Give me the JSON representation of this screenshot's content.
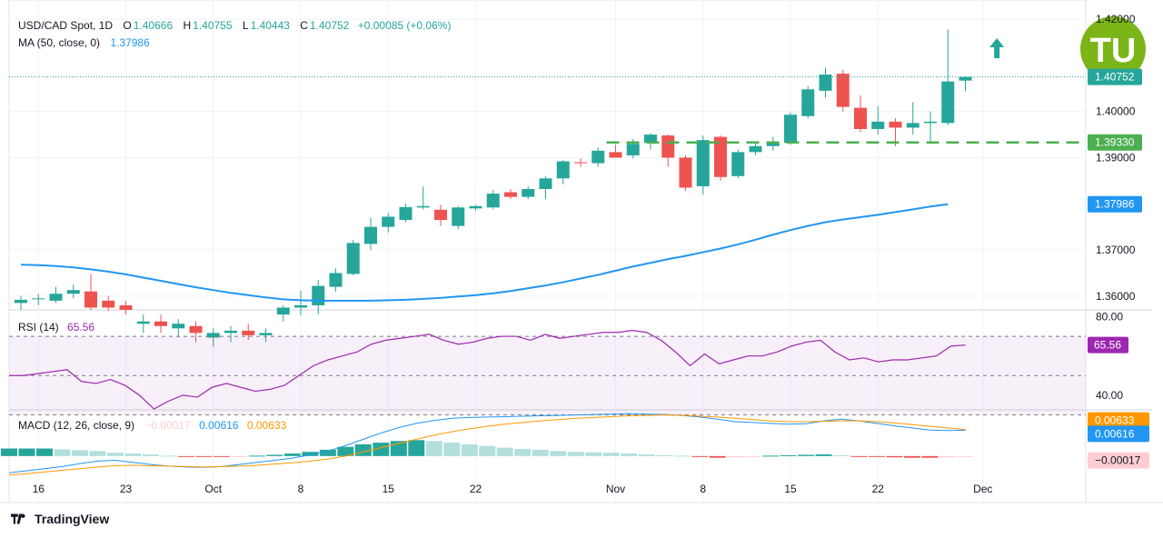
{
  "header": {
    "symbol": "USD/CAD Spot, 1D",
    "o_label": "O",
    "o_value": "1.40666",
    "h_label": "H",
    "h_value": "1.40755",
    "l_label": "L",
    "l_value": "1.40443",
    "c_label": "C",
    "c_value": "1.40752",
    "change": "+0.00085 (+0.06%)",
    "ma_label": "MA (50, close, 0)",
    "ma_value": "1.37986"
  },
  "rsi_legend": {
    "label": "RSI (14)",
    "value": "65.56"
  },
  "macd_legend": {
    "label": "MACD (12, 26, close, 9)",
    "hist": "−0.00017",
    "macd": "0.00616",
    "signal": "0.00633"
  },
  "branding": {
    "text": "TradingView",
    "watermark": "TU"
  },
  "colors": {
    "up": "#26a69a",
    "down": "#ef5350",
    "ma": "#2196f3",
    "rsi": "#9c27b0",
    "macd": "#2196f3",
    "signal": "#ff9800",
    "support": "#4caf50",
    "hist_up_strong": "#26a69a",
    "hist_up_weak": "#b2dfdb",
    "hist_down_strong": "#ef5350",
    "hist_down_weak": "#ffcdd2"
  },
  "chart_data": {
    "type": "candlestick",
    "price_axis_ticks": [
      "1.42000",
      "1.40000",
      "1.39000",
      "1.37000",
      "1.36000"
    ],
    "price_labels": {
      "last": "1.40752",
      "support": "1.39330",
      "ma": "1.37986"
    },
    "x_ticks": [
      "16",
      "23",
      "Oct",
      "8",
      "15",
      "22",
      "Nov",
      "8",
      "15",
      "22",
      "Dec"
    ],
    "support_level": 1.3933,
    "arrow": "up",
    "candles": [
      {
        "o": 1.3585,
        "h": 1.36,
        "l": 1.357,
        "c": 1.3592
      },
      {
        "o": 1.3593,
        "h": 1.3605,
        "l": 1.358,
        "c": 1.3595
      },
      {
        "o": 1.359,
        "h": 1.362,
        "l": 1.3585,
        "c": 1.3605
      },
      {
        "o": 1.3605,
        "h": 1.3625,
        "l": 1.3595,
        "c": 1.3613
      },
      {
        "o": 1.361,
        "h": 1.3648,
        "l": 1.357,
        "c": 1.3575
      },
      {
        "o": 1.359,
        "h": 1.36,
        "l": 1.3568,
        "c": 1.3575
      },
      {
        "o": 1.358,
        "h": 1.359,
        "l": 1.356,
        "c": 1.357
      },
      {
        "o": 1.354,
        "h": 1.356,
        "l": 1.352,
        "c": 1.3545
      },
      {
        "o": 1.3545,
        "h": 1.356,
        "l": 1.352,
        "c": 1.3535
      },
      {
        "o": 1.353,
        "h": 1.355,
        "l": 1.351,
        "c": 1.354
      },
      {
        "o": 1.3535,
        "h": 1.3545,
        "l": 1.35,
        "c": 1.352
      },
      {
        "o": 1.351,
        "h": 1.353,
        "l": 1.349,
        "c": 1.352
      },
      {
        "o": 1.352,
        "h": 1.3535,
        "l": 1.35,
        "c": 1.3525
      },
      {
        "o": 1.3525,
        "h": 1.354,
        "l": 1.3505,
        "c": 1.3515
      },
      {
        "o": 1.3515,
        "h": 1.353,
        "l": 1.35,
        "c": 1.352
      },
      {
        "o": 1.356,
        "h": 1.358,
        "l": 1.3545,
        "c": 1.3575
      },
      {
        "o": 1.3575,
        "h": 1.3612,
        "l": 1.3558,
        "c": 1.358
      },
      {
        "o": 1.358,
        "h": 1.3635,
        "l": 1.356,
        "c": 1.3622
      },
      {
        "o": 1.362,
        "h": 1.366,
        "l": 1.361,
        "c": 1.365
      },
      {
        "o": 1.3648,
        "h": 1.3722,
        "l": 1.3645,
        "c": 1.3715
      },
      {
        "o": 1.3713,
        "h": 1.377,
        "l": 1.37,
        "c": 1.375
      },
      {
        "o": 1.375,
        "h": 1.378,
        "l": 1.3738,
        "c": 1.3772
      },
      {
        "o": 1.3765,
        "h": 1.38,
        "l": 1.376,
        "c": 1.3793
      },
      {
        "o": 1.3792,
        "h": 1.3838,
        "l": 1.3788,
        "c": 1.3795
      },
      {
        "o": 1.3787,
        "h": 1.3798,
        "l": 1.3752,
        "c": 1.3765
      },
      {
        "o": 1.3752,
        "h": 1.3795,
        "l": 1.3745,
        "c": 1.3792
      },
      {
        "o": 1.379,
        "h": 1.3798,
        "l": 1.3785,
        "c": 1.3795
      },
      {
        "o": 1.3792,
        "h": 1.383,
        "l": 1.3788,
        "c": 1.3822
      },
      {
        "o": 1.3825,
        "h": 1.3832,
        "l": 1.381,
        "c": 1.3815
      },
      {
        "o": 1.3815,
        "h": 1.3838,
        "l": 1.381,
        "c": 1.3832
      },
      {
        "o": 1.3832,
        "h": 1.386,
        "l": 1.381,
        "c": 1.3855
      },
      {
        "o": 1.3855,
        "h": 1.3895,
        "l": 1.3842,
        "c": 1.3892
      },
      {
        "o": 1.389,
        "h": 1.3898,
        "l": 1.388,
        "c": 1.3888
      },
      {
        "o": 1.3888,
        "h": 1.3922,
        "l": 1.388,
        "c": 1.3915
      },
      {
        "o": 1.3912,
        "h": 1.3928,
        "l": 1.39,
        "c": 1.39
      },
      {
        "o": 1.3905,
        "h": 1.394,
        "l": 1.3898,
        "c": 1.393
      },
      {
        "o": 1.3932,
        "h": 1.3953,
        "l": 1.3918,
        "c": 1.395
      },
      {
        "o": 1.3948,
        "h": 1.395,
        "l": 1.388,
        "c": 1.39
      },
      {
        "o": 1.39,
        "h": 1.3905,
        "l": 1.3828,
        "c": 1.3835
      },
      {
        "o": 1.3838,
        "h": 1.3948,
        "l": 1.382,
        "c": 1.3938
      },
      {
        "o": 1.3945,
        "h": 1.3948,
        "l": 1.385,
        "c": 1.3858
      },
      {
        "o": 1.386,
        "h": 1.3918,
        "l": 1.3855,
        "c": 1.3912
      },
      {
        "o": 1.3912,
        "h": 1.3935,
        "l": 1.3905,
        "c": 1.3925
      },
      {
        "o": 1.3925,
        "h": 1.3945,
        "l": 1.3915,
        "c": 1.3932
      },
      {
        "o": 1.3932,
        "h": 1.3998,
        "l": 1.3928,
        "c": 1.3993
      },
      {
        "o": 1.399,
        "h": 1.4055,
        "l": 1.3985,
        "c": 1.4048
      },
      {
        "o": 1.4045,
        "h": 1.4095,
        "l": 1.403,
        "c": 1.408
      },
      {
        "o": 1.4082,
        "h": 1.409,
        "l": 1.4,
        "c": 1.401
      },
      {
        "o": 1.4008,
        "h": 1.4035,
        "l": 1.3955,
        "c": 1.3962
      },
      {
        "o": 1.3962,
        "h": 1.4012,
        "l": 1.395,
        "c": 1.3978
      },
      {
        "o": 1.3978,
        "h": 1.3985,
        "l": 1.3925,
        "c": 1.3965
      },
      {
        "o": 1.3965,
        "h": 1.402,
        "l": 1.395,
        "c": 1.3975
      },
      {
        "o": 1.3975,
        "h": 1.4,
        "l": 1.393,
        "c": 1.3978
      },
      {
        "o": 1.3975,
        "h": 1.4178,
        "l": 1.397,
        "c": 1.4065
      },
      {
        "o": 1.4067,
        "h": 1.4076,
        "l": 1.4044,
        "c": 1.4075
      }
    ],
    "ma50": [
      1.3668,
      1.3667,
      1.3665,
      1.3662,
      1.3658,
      1.3653,
      1.3647,
      1.364,
      1.3633,
      1.3626,
      1.3619,
      1.3613,
      1.3607,
      1.3602,
      1.3597,
      1.3593,
      1.3591,
      1.359,
      1.359,
      1.359,
      1.359,
      1.3591,
      1.3592,
      1.3594,
      1.3596,
      1.3599,
      1.3602,
      1.3606,
      1.3611,
      1.3617,
      1.3623,
      1.363,
      1.3638,
      1.3646,
      1.3655,
      1.3664,
      1.3672,
      1.368,
      1.3687,
      1.3695,
      1.3703,
      1.3712,
      1.3722,
      1.3733,
      1.3743,
      1.3752,
      1.376,
      1.3766,
      1.3771,
      1.3776,
      1.3782,
      1.3788,
      1.3794,
      1.3799
    ],
    "rsi": [
      50,
      50,
      51,
      52,
      53,
      47,
      46,
      48,
      45,
      40,
      33,
      37,
      40,
      39,
      44,
      46,
      44,
      42,
      43,
      45,
      50,
      55,
      58,
      60,
      62,
      66,
      68,
      69,
      70,
      71,
      68,
      66,
      67,
      69,
      70,
      70,
      68,
      71,
      69,
      70,
      71,
      72,
      72,
      73,
      72,
      68,
      62,
      55,
      61,
      56,
      58,
      60,
      60,
      62,
      65,
      67,
      68,
      62,
      58,
      59,
      57,
      58,
      58,
      59,
      60,
      65,
      65.56
    ],
    "macd_series": {
      "macd": [
        -0.004,
        -0.0035,
        -0.003,
        -0.0025,
        -0.0018,
        -0.0012,
        -0.001,
        -0.0015,
        -0.002,
        -0.0024,
        -0.0026,
        -0.0027,
        -0.0025,
        -0.002,
        -0.0015,
        -0.001,
        -0.0005,
        0.0003,
        0.0012,
        0.0025,
        0.004,
        0.0055,
        0.0068,
        0.0078,
        0.0085,
        0.009,
        0.0092,
        0.0093,
        0.0094,
        0.0095,
        0.0096,
        0.0097,
        0.0098,
        0.0099,
        0.01,
        0.0101,
        0.01,
        0.0099,
        0.0097,
        0.0093,
        0.0088,
        0.0082,
        0.008,
        0.0078,
        0.0076,
        0.0077,
        0.0084,
        0.0088,
        0.0084,
        0.0078,
        0.0072,
        0.0067,
        0.0062,
        0.0061,
        0.00616
      ],
      "signal": [
        -0.0045,
        -0.0042,
        -0.0038,
        -0.0034,
        -0.003,
        -0.0026,
        -0.0023,
        -0.0022,
        -0.0023,
        -0.0024,
        -0.0025,
        -0.0026,
        -0.0025,
        -0.0024,
        -0.0022,
        -0.0019,
        -0.0016,
        -0.0012,
        -0.0007,
        0.0,
        0.001,
        0.002,
        0.003,
        0.004,
        0.005,
        0.0058,
        0.0065,
        0.0071,
        0.0076,
        0.008,
        0.0084,
        0.0087,
        0.009,
        0.0092,
        0.0094,
        0.0096,
        0.0097,
        0.0098,
        0.0097,
        0.0095,
        0.0093,
        0.009,
        0.0087,
        0.0084,
        0.0082,
        0.0082,
        0.0083,
        0.0084,
        0.0084,
        0.0082,
        0.0079,
        0.0075,
        0.0071,
        0.0067,
        0.00633
      ],
      "hist": [
        0.0018,
        0.0018,
        0.0018,
        0.0016,
        0.0014,
        0.0012,
        0.0008,
        0.0006,
        0.0004,
        0.0001,
        -0.0001,
        -0.0002,
        -0.0002,
        -0.0001,
        0.0001,
        0.0003,
        0.0006,
        0.001,
        0.0015,
        0.0022,
        0.0028,
        0.0032,
        0.0036,
        0.0038,
        0.0036,
        0.0032,
        0.0028,
        0.0024,
        0.002,
        0.0017,
        0.0015,
        0.0012,
        0.001,
        0.0009,
        0.0008,
        0.0006,
        0.0004,
        0.0002,
        0.0001,
        -0.0002,
        -0.0004,
        -0.0003,
        -0.0001,
        0.0001,
        0.0002,
        0.0003,
        0.0004,
        0.0002,
        -0.0001,
        -0.0002,
        -0.0003,
        -0.0004,
        -0.0004,
        -0.0003,
        -0.00017
      ]
    }
  }
}
